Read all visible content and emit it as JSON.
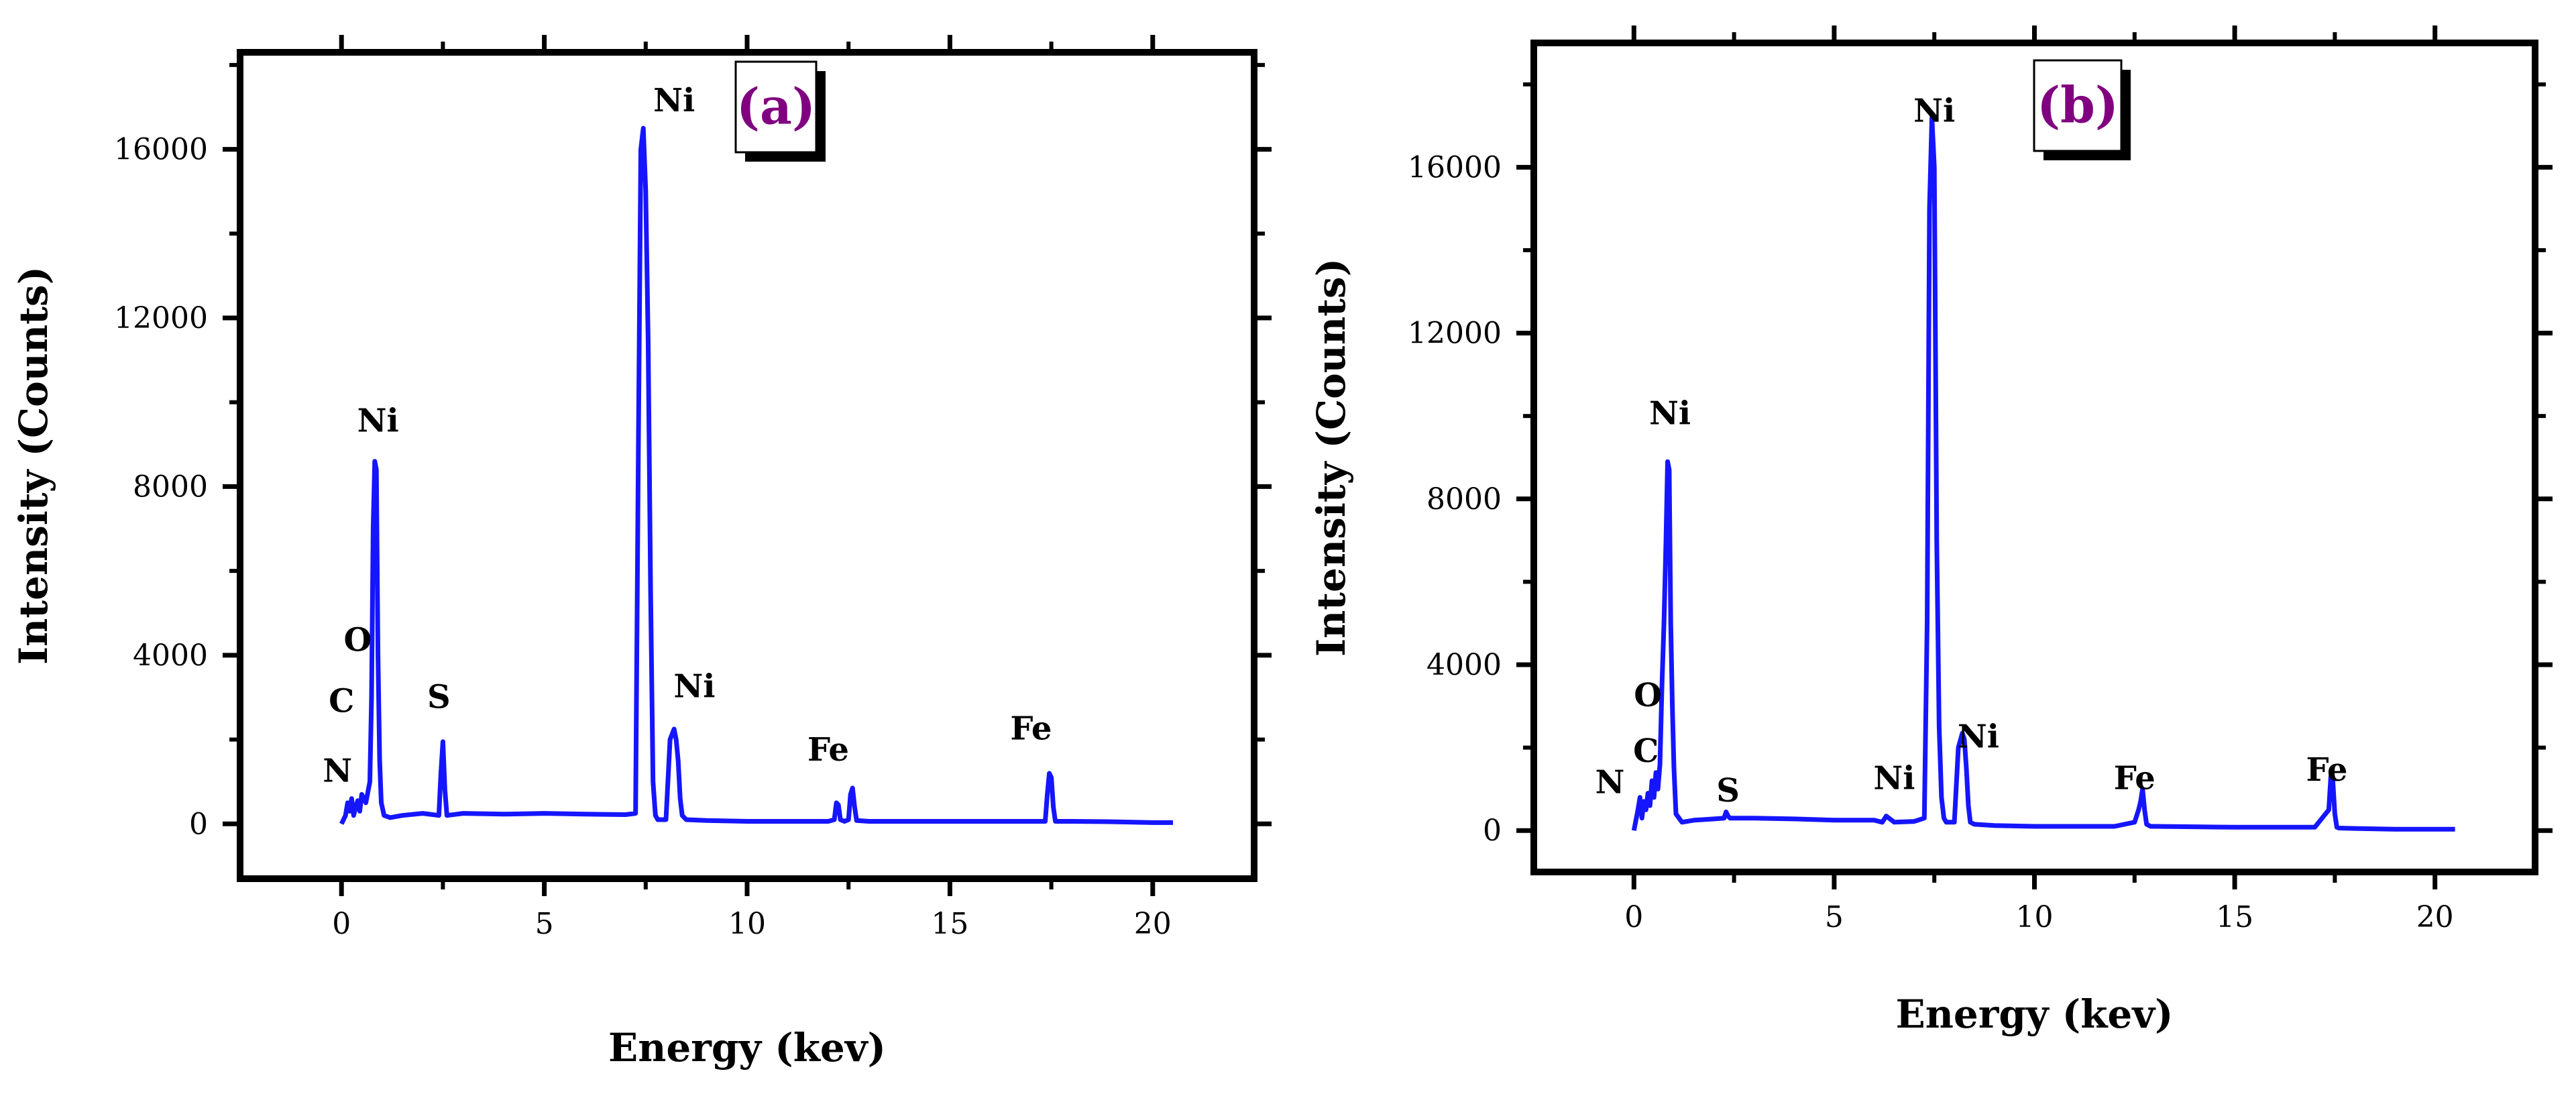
{
  "chart_data": [
    {
      "type": "line",
      "panel_label": "(a)",
      "xlabel": "Energy (kev)",
      "ylabel": "Intensity (Counts)",
      "xlim": [
        -2.5,
        22.5
      ],
      "ylim": [
        -1300,
        18300
      ],
      "xticks": [
        0,
        5,
        10,
        15,
        20
      ],
      "yticks": [
        0,
        4000,
        8000,
        12000,
        16000
      ],
      "line_color": "#1515ff",
      "series": [
        {
          "x": [
            0.0,
            0.1,
            0.15,
            0.2,
            0.25,
            0.3,
            0.35,
            0.4,
            0.45,
            0.5,
            0.6,
            0.7,
            0.74,
            0.78,
            0.82,
            0.86,
            0.9,
            0.94,
            0.98,
            1.05,
            1.2,
            1.5,
            2.0,
            2.4,
            2.45,
            2.5,
            2.55,
            2.6,
            3.0,
            4.0,
            5.0,
            6.0,
            7.0,
            7.25,
            7.32,
            7.38,
            7.44,
            7.5,
            7.56,
            7.62,
            7.68,
            7.74,
            7.8,
            7.9,
            8.0,
            8.1,
            8.2,
            8.25,
            8.3,
            8.35,
            8.4,
            8.5,
            9.0,
            10.0,
            11.0,
            12.0,
            12.15,
            12.2,
            12.25,
            12.3,
            12.4,
            12.5,
            12.55,
            12.6,
            12.65,
            12.7,
            13.0,
            14.0,
            15.0,
            16.0,
            17.0,
            17.35,
            17.4,
            17.45,
            17.5,
            17.55,
            17.6,
            18.0,
            19.0,
            20.0,
            20.5
          ],
          "y": [
            0,
            200,
            500,
            300,
            600,
            200,
            400,
            550,
            300,
            700,
            500,
            1000,
            3000,
            7000,
            8600,
            8400,
            4000,
            1500,
            500,
            200,
            150,
            200,
            250,
            200,
            1200,
            1950,
            800,
            200,
            250,
            230,
            250,
            230,
            220,
            250,
            9000,
            16000,
            16500,
            15000,
            11500,
            5500,
            1000,
            200,
            100,
            100,
            100,
            2000,
            2250,
            2000,
            1500,
            600,
            200,
            100,
            80,
            60,
            60,
            60,
            100,
            500,
            450,
            100,
            60,
            100,
            700,
            850,
            400,
            80,
            60,
            60,
            60,
            60,
            60,
            60,
            700,
            1200,
            1100,
            400,
            60,
            60,
            50,
            30,
            30
          ]
        }
      ],
      "annotations": [
        {
          "text": "N",
          "x": -0.1,
          "y": 1000
        },
        {
          "text": "C",
          "x": 0.0,
          "y": 2650
        },
        {
          "text": "O",
          "x": 0.4,
          "y": 4100
        },
        {
          "text": "Ni",
          "x": 0.9,
          "y": 9300
        },
        {
          "text": "S",
          "x": 2.4,
          "y": 2750
        },
        {
          "text": "Ni",
          "x": 8.2,
          "y": 16900
        },
        {
          "text": "Ni",
          "x": 8.7,
          "y": 3000
        },
        {
          "text": "Fe",
          "x": 12.0,
          "y": 1500
        },
        {
          "text": "Fe",
          "x": 17.0,
          "y": 2000
        }
      ]
    },
    {
      "type": "line",
      "panel_label": "(b)",
      "xlabel": "Energy (kev)",
      "ylabel": "Intensity (Counts)",
      "xlim": [
        -2.5,
        22.5
      ],
      "ylim": [
        -1000,
        19000
      ],
      "xticks": [
        0,
        5,
        10,
        15,
        20
      ],
      "yticks": [
        0,
        4000,
        8000,
        12000,
        16000
      ],
      "line_color": "#1515ff",
      "series": [
        {
          "x": [
            0.0,
            0.1,
            0.15,
            0.2,
            0.25,
            0.3,
            0.35,
            0.4,
            0.45,
            0.5,
            0.55,
            0.6,
            0.65,
            0.7,
            0.75,
            0.8,
            0.84,
            0.88,
            0.92,
            0.96,
            1.0,
            1.05,
            1.2,
            1.5,
            2.0,
            2.25,
            2.3,
            2.35,
            2.4,
            3.0,
            4.0,
            5.0,
            6.0,
            6.2,
            6.3,
            6.5,
            7.0,
            7.25,
            7.32,
            7.38,
            7.44,
            7.5,
            7.56,
            7.62,
            7.68,
            7.74,
            7.8,
            7.9,
            8.0,
            8.1,
            8.2,
            8.25,
            8.3,
            8.35,
            8.4,
            8.5,
            9.0,
            10.0,
            11.0,
            12.0,
            12.5,
            12.6,
            12.65,
            12.7,
            12.75,
            12.8,
            12.9,
            13.0,
            14.0,
            15.0,
            16.0,
            17.0,
            17.35,
            17.4,
            17.45,
            17.5,
            17.55,
            17.6,
            18.0,
            19.0,
            20.0,
            20.5
          ],
          "y": [
            0,
            500,
            800,
            300,
            700,
            500,
            900,
            600,
            1200,
            800,
            1400,
            1000,
            1600,
            3500,
            5000,
            7000,
            8900,
            8700,
            5000,
            3000,
            1500,
            400,
            200,
            250,
            280,
            300,
            450,
            350,
            300,
            300,
            280,
            250,
            250,
            200,
            350,
            200,
            220,
            300,
            5000,
            15000,
            17200,
            16000,
            7000,
            2500,
            800,
            300,
            200,
            200,
            200,
            2000,
            2350,
            2200,
            1500,
            600,
            200,
            150,
            120,
            100,
            100,
            100,
            200,
            500,
            700,
            1000,
            500,
            150,
            100,
            100,
            90,
            80,
            80,
            80,
            500,
            1300,
            1200,
            400,
            80,
            60,
            50,
            30,
            30,
            30
          ]
        }
      ],
      "annotations": [
        {
          "text": "N",
          "x": -0.6,
          "y": 900
        },
        {
          "text": "C",
          "x": 0.3,
          "y": 1650
        },
        {
          "text": "O",
          "x": 0.35,
          "y": 3000
        },
        {
          "text": "Ni",
          "x": 0.9,
          "y": 9800
        },
        {
          "text": "S",
          "x": 2.35,
          "y": 700
        },
        {
          "text": "Ni",
          "x": 6.5,
          "y": 1000
        },
        {
          "text": "Ni",
          "x": 7.5,
          "y": 17100
        },
        {
          "text": "Ni",
          "x": 8.6,
          "y": 2000
        },
        {
          "text": "Fe",
          "x": 12.5,
          "y": 1000
        },
        {
          "text": "Fe",
          "x": 17.3,
          "y": 1200
        }
      ]
    }
  ]
}
